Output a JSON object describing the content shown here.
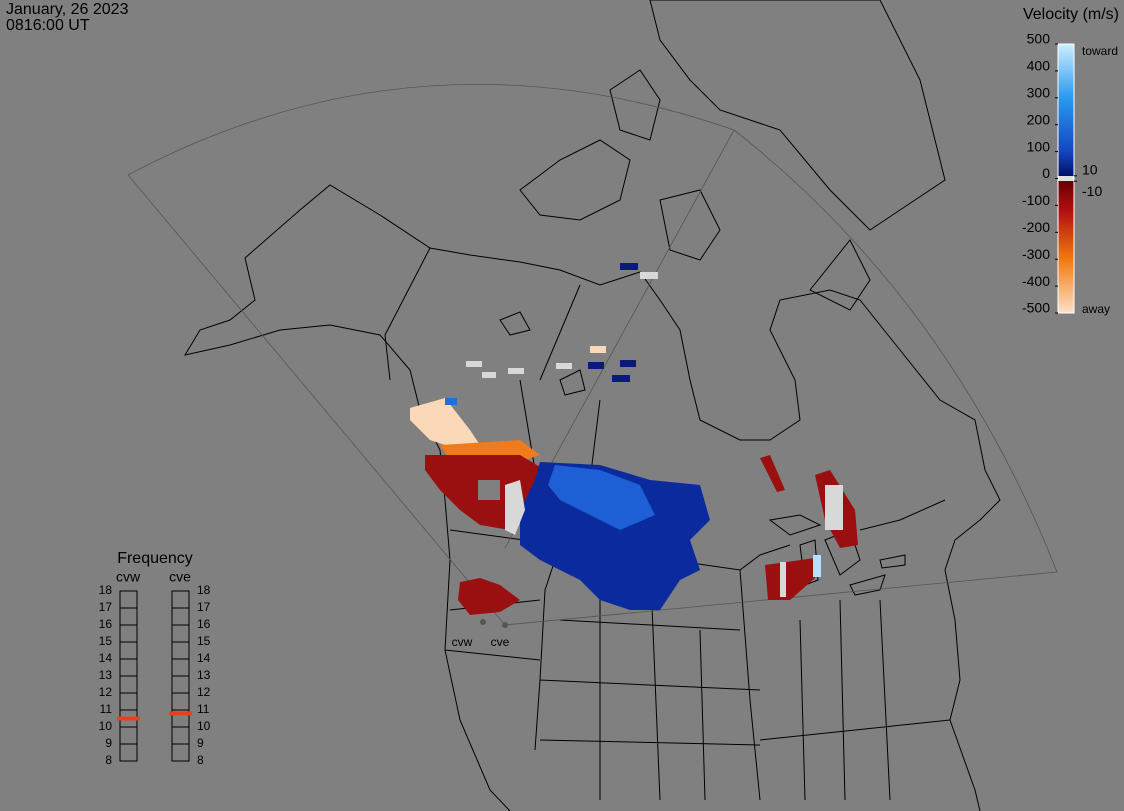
{
  "header": {
    "date": "January, 26 2023",
    "time": "0816:00 UT"
  },
  "velocity_scale": {
    "title": "Velocity (m/s)",
    "lim": [
      -500,
      500
    ],
    "ticks": [
      500,
      400,
      300,
      200,
      100,
      0,
      -100,
      -200,
      -300,
      -400,
      -500
    ],
    "threshold_ticks": [
      10,
      -10
    ],
    "top_label": "toward",
    "bottom_label": "away"
  },
  "frequency_panel": {
    "title": "Frequency",
    "lim": [
      8,
      18
    ],
    "ticks": [
      18,
      17,
      16,
      15,
      14,
      13,
      12,
      11,
      10,
      9,
      8
    ],
    "radars": [
      {
        "name": "cvw",
        "frequency": 10.5,
        "color": "#e8401c"
      },
      {
        "name": "cve",
        "frequency": 10.8,
        "color": "#e8401c"
      }
    ]
  }
}
